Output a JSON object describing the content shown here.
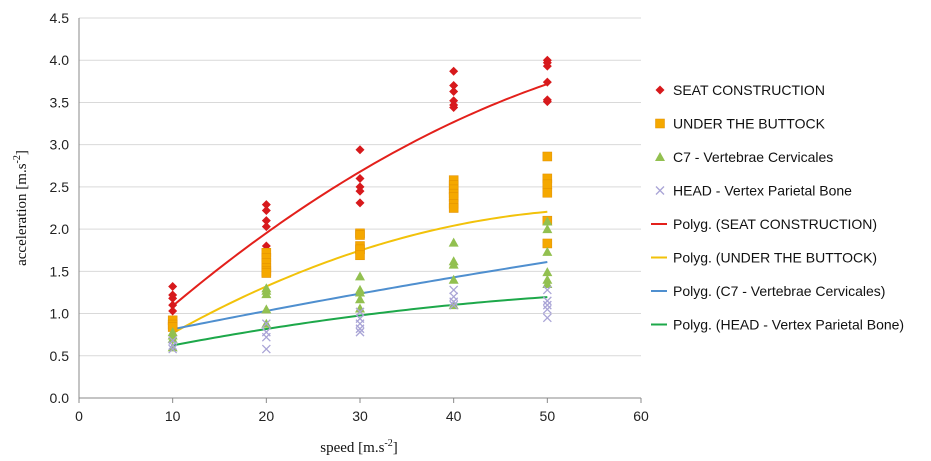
{
  "chart_data": {
    "type": "scatter",
    "xlabel": "speed [m.s",
    "xlabel_exp": "-2",
    "xlabel_close": "]",
    "ylabel": "acceleration [m.s",
    "ylabel_exp": "-2",
    "ylabel_close": "]",
    "xlim": [
      0,
      60
    ],
    "ylim": [
      0,
      4.5
    ],
    "x_ticks": [
      "0",
      "10",
      "20",
      "30",
      "40",
      "50",
      "60"
    ],
    "y_ticks": [
      "0.0",
      "0.5",
      "1.0",
      "1.5",
      "2.0",
      "2.5",
      "3.0",
      "3.5",
      "4.0",
      "4.5"
    ],
    "grid": "horizontal",
    "legend_position": "right",
    "series": [
      {
        "name": "SEAT CONSTRUCTION",
        "marker": "diamond",
        "color": "#d7191c",
        "points": [
          [
            10,
            1.32
          ],
          [
            10,
            1.22
          ],
          [
            10,
            1.18
          ],
          [
            10,
            1.1
          ],
          [
            10,
            1.03
          ],
          [
            20,
            2.29
          ],
          [
            20,
            2.22
          ],
          [
            20,
            2.1
          ],
          [
            20,
            2.03
          ],
          [
            20,
            1.8
          ],
          [
            20,
            1.75
          ],
          [
            30,
            2.94
          ],
          [
            30,
            2.6
          ],
          [
            30,
            2.5
          ],
          [
            30,
            2.45
          ],
          [
            30,
            2.31
          ],
          [
            40,
            3.87
          ],
          [
            40,
            3.7
          ],
          [
            40,
            3.63
          ],
          [
            40,
            3.52
          ],
          [
            40,
            3.47
          ],
          [
            40,
            3.44
          ],
          [
            50,
            4.0
          ],
          [
            50,
            3.97
          ],
          [
            50,
            3.93
          ],
          [
            50,
            3.74
          ],
          [
            50,
            3.53
          ],
          [
            50,
            3.51
          ]
        ]
      },
      {
        "name": "UNDER THE BUTTOCK",
        "marker": "square",
        "color": "#f5a800",
        "points": [
          [
            10,
            0.92
          ],
          [
            10,
            0.87
          ],
          [
            10,
            0.84
          ],
          [
            20,
            1.72
          ],
          [
            20,
            1.66
          ],
          [
            20,
            1.6
          ],
          [
            20,
            1.54
          ],
          [
            20,
            1.5
          ],
          [
            20,
            1.48
          ],
          [
            30,
            1.95
          ],
          [
            30,
            1.93
          ],
          [
            30,
            1.8
          ],
          [
            30,
            1.76
          ],
          [
            30,
            1.69
          ],
          [
            40,
            2.58
          ],
          [
            40,
            2.52
          ],
          [
            40,
            2.47
          ],
          [
            40,
            2.42
          ],
          [
            40,
            2.38
          ],
          [
            40,
            2.3
          ],
          [
            40,
            2.25
          ],
          [
            50,
            2.86
          ],
          [
            50,
            2.6
          ],
          [
            50,
            2.53
          ],
          [
            50,
            2.43
          ],
          [
            50,
            2.1
          ],
          [
            50,
            1.83
          ]
        ]
      },
      {
        "name": "C7  - Vertebrae Cervicales",
        "marker": "triangle",
        "color": "#92c050",
        "points": [
          [
            10,
            0.78
          ],
          [
            10,
            0.74
          ],
          [
            10,
            0.7
          ],
          [
            10,
            0.6
          ],
          [
            20,
            1.3
          ],
          [
            20,
            1.27
          ],
          [
            20,
            1.23
          ],
          [
            20,
            1.05
          ],
          [
            20,
            0.88
          ],
          [
            30,
            1.44
          ],
          [
            30,
            1.28
          ],
          [
            30,
            1.25
          ],
          [
            30,
            1.17
          ],
          [
            30,
            1.06
          ],
          [
            40,
            1.84
          ],
          [
            40,
            1.62
          ],
          [
            40,
            1.58
          ],
          [
            40,
            1.4
          ],
          [
            40,
            1.1
          ],
          [
            50,
            2.09
          ],
          [
            50,
            2.0
          ],
          [
            50,
            1.73
          ],
          [
            50,
            1.49
          ],
          [
            50,
            1.4
          ],
          [
            50,
            1.35
          ]
        ]
      },
      {
        "name": "HEAD - Vertex Parietal Bone",
        "marker": "x",
        "color": "#a9a4d6",
        "points": [
          [
            10,
            0.68
          ],
          [
            10,
            0.62
          ],
          [
            10,
            0.58
          ],
          [
            20,
            0.88
          ],
          [
            20,
            0.78
          ],
          [
            20,
            0.72
          ],
          [
            20,
            0.58
          ],
          [
            30,
            1.02
          ],
          [
            30,
            0.94
          ],
          [
            30,
            0.88
          ],
          [
            30,
            0.82
          ],
          [
            30,
            0.78
          ],
          [
            40,
            1.28
          ],
          [
            40,
            1.2
          ],
          [
            40,
            1.14
          ],
          [
            40,
            1.1
          ],
          [
            50,
            1.28
          ],
          [
            50,
            1.15
          ],
          [
            50,
            1.1
          ],
          [
            50,
            1.05
          ],
          [
            50,
            0.95
          ]
        ]
      }
    ],
    "trendlines": [
      {
        "name": "Polyg. (SEAT CONSTRUCTION)",
        "color": "#e3201b",
        "type": "polynomial-2",
        "coef": [
          0.0875,
          0.1071,
          -0.00069
        ]
      },
      {
        "name": "Polyg. (UNDER THE BUTTOCK)",
        "color": "#f2c20a",
        "type": "polynomial-2",
        "coef": [
          0.0825,
          0.07495,
          -0.00065
        ]
      },
      {
        "name": "Polyg. (C7  - Vertebrae Cervicales)",
        "color": "#4f8fcf",
        "type": "polynomial-2",
        "coef": [
          0.585,
          0.0235,
          -6e-05
        ]
      },
      {
        "name": "Polyg. (HEAD - Vertex Parietal Bone)",
        "color": "#1da84a",
        "type": "polynomial-2",
        "coef": [
          0.395,
          0.0245,
          -0.00017
        ]
      }
    ]
  }
}
